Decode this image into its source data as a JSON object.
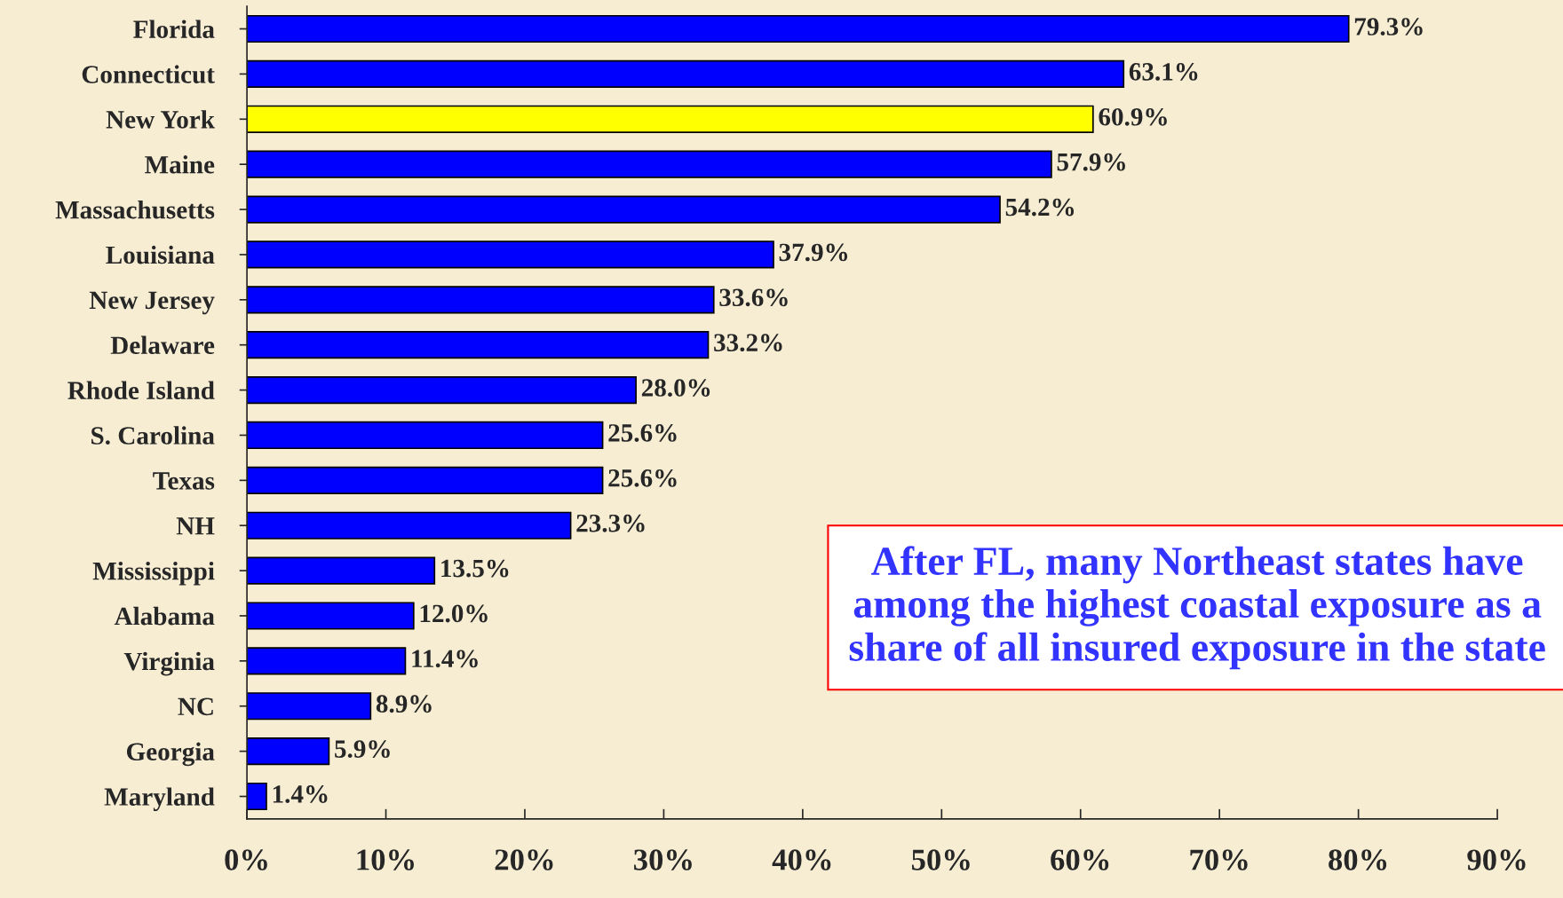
{
  "chart_data": {
    "type": "bar",
    "orientation": "horizontal",
    "categories": [
      "Florida",
      "Connecticut",
      "New York",
      "Maine",
      "Massachusetts",
      "Louisiana",
      "New Jersey",
      "Delaware",
      "Rhode Island",
      "S. Carolina",
      "Texas",
      "NH",
      "Mississippi",
      "Alabama",
      "Virginia",
      "NC",
      "Georgia",
      "Maryland"
    ],
    "values": [
      79.3,
      63.1,
      60.9,
      57.9,
      54.2,
      37.9,
      33.6,
      33.2,
      28.0,
      25.6,
      25.6,
      23.3,
      13.5,
      12.0,
      11.4,
      8.9,
      5.9,
      1.4
    ],
    "colors": [
      "#0000ff",
      "#0000ff",
      "#ffff00",
      "#0000ff",
      "#0000ff",
      "#0000ff",
      "#0000ff",
      "#0000ff",
      "#0000ff",
      "#0000ff",
      "#0000ff",
      "#0000ff",
      "#0000ff",
      "#0000ff",
      "#0000ff",
      "#0000ff",
      "#0000ff",
      "#0000ff"
    ],
    "value_labels": [
      "79.3%",
      "63.1%",
      "60.9%",
      "57.9%",
      "54.2%",
      "37.9%",
      "33.6%",
      "33.2%",
      "28.0%",
      "25.6%",
      "25.6%",
      "23.3%",
      "13.5%",
      "12.0%",
      "11.4%",
      "8.9%",
      "5.9%",
      "1.4%"
    ],
    "xlim": [
      0,
      90
    ],
    "xticks": [
      {
        "value": 0,
        "label": "0%"
      },
      {
        "value": 10,
        "label": "10%"
      },
      {
        "value": 20,
        "label": "20%"
      },
      {
        "value": 30,
        "label": "30%"
      },
      {
        "value": 40,
        "label": "40%"
      },
      {
        "value": 50,
        "label": "50%"
      },
      {
        "value": 60,
        "label": "60%"
      },
      {
        "value": 70,
        "label": "70%"
      },
      {
        "value": 80,
        "label": "80%"
      },
      {
        "value": 90,
        "label": "90%"
      }
    ],
    "grid": false,
    "annotations": [
      "After FL, many Northeast states have among the highest coastal exposure as a share of all insured exposure in the state"
    ]
  }
}
